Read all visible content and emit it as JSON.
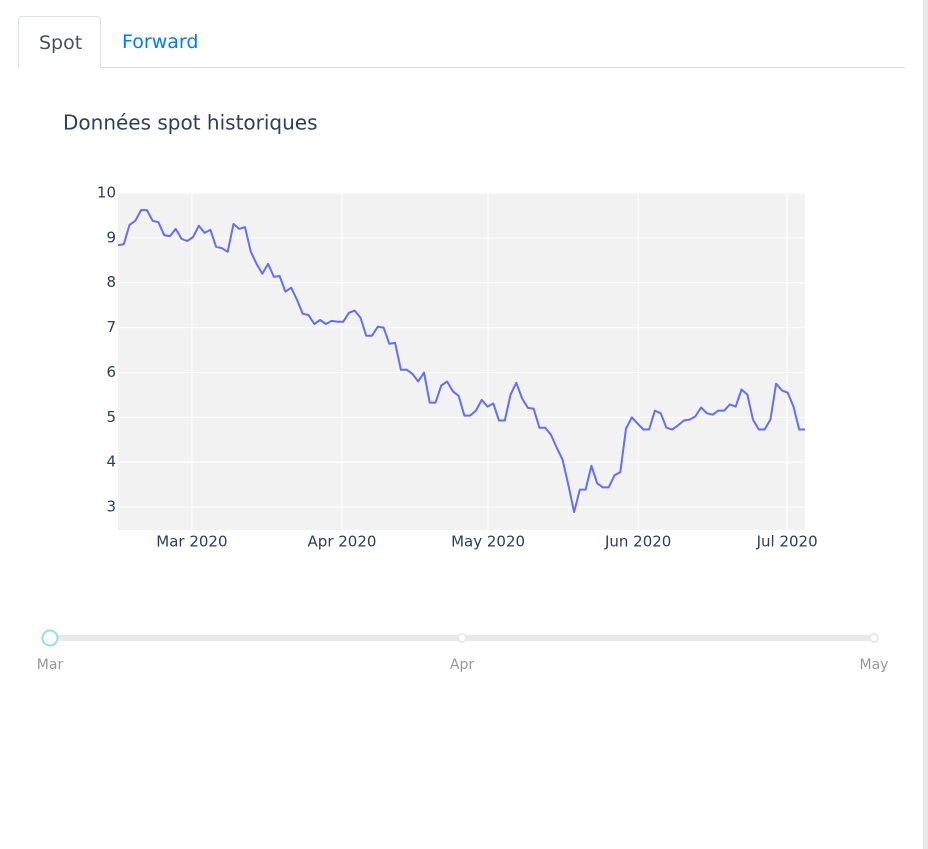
{
  "tabs": [
    "Spot",
    "Forward"
  ],
  "chart_data": {
    "type": "line",
    "title": "Données spot historiques",
    "series": [
      {
        "color": "#636efa",
        "values": [
          8.84,
          8.86,
          9.29,
          9.38,
          9.62,
          9.62,
          9.38,
          9.35,
          9.06,
          9.04,
          9.2,
          8.98,
          8.93,
          9.02,
          9.27,
          9.11,
          9.18,
          8.8,
          8.77,
          8.69,
          9.31,
          9.2,
          9.24,
          8.69,
          8.42,
          8.2,
          8.42,
          8.13,
          8.15,
          7.8,
          7.89,
          7.62,
          7.31,
          7.28,
          7.08,
          7.17,
          7.08,
          7.15,
          7.13,
          7.13,
          7.33,
          7.38,
          7.22,
          6.82,
          6.82,
          7.02,
          7.0,
          6.64,
          6.66,
          6.06,
          6.06,
          5.97,
          5.8,
          6.0,
          5.33,
          5.33,
          5.71,
          5.8,
          5.58,
          5.48,
          5.04,
          5.04,
          5.15,
          5.39,
          5.24,
          5.31,
          4.93,
          4.93,
          5.51,
          5.77,
          5.42,
          5.21,
          5.19,
          4.77,
          4.77,
          4.61,
          4.32,
          4.06,
          3.5,
          2.89,
          3.39,
          3.39,
          3.92,
          3.53,
          3.44,
          3.44,
          3.71,
          3.78,
          4.75,
          5.0,
          4.86,
          4.73,
          4.73,
          5.15,
          5.09,
          4.77,
          4.73,
          4.82,
          4.93,
          4.95,
          5.02,
          5.22,
          5.09,
          5.06,
          5.15,
          5.15,
          5.29,
          5.24,
          5.62,
          5.51,
          4.95,
          4.73,
          4.73,
          4.95,
          5.75,
          5.6,
          5.55,
          5.24,
          4.73,
          4.73
        ]
      }
    ],
    "xlim": [
      0,
      119
    ],
    "xticks": [
      {
        "value": 12.8,
        "label": "Mar 2020"
      },
      {
        "value": 38.8,
        "label": "Apr 2020"
      },
      {
        "value": 64.1,
        "label": "May 2020"
      },
      {
        "value": 90.1,
        "label": "Jun 2020"
      },
      {
        "value": 115.9,
        "label": "Jul 2020"
      }
    ],
    "ylim": [
      2.49,
      10
    ],
    "yticks": [
      3,
      4,
      5,
      6,
      7,
      8,
      9,
      10
    ],
    "grid": true
  },
  "slider": {
    "marks": [
      "Mar",
      "Apr",
      "May"
    ]
  }
}
